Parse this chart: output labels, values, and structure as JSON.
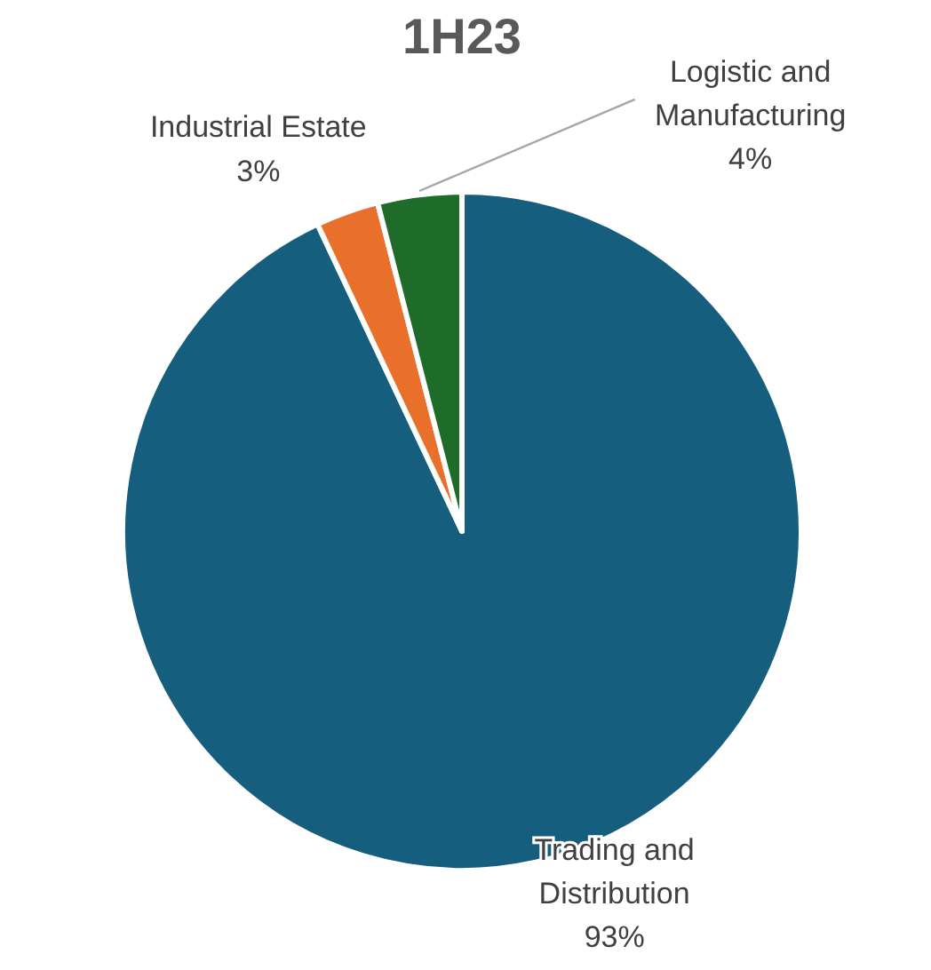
{
  "chart_data": {
    "type": "pie",
    "title": "1H23",
    "categories": [
      "Trading and Distribution",
      "Industrial Estate",
      "Logistic and Manufacturing"
    ],
    "values": [
      93,
      3,
      4
    ],
    "colors": [
      "#155e7d",
      "#e8702a",
      "#1e6b2a"
    ],
    "value_labels": [
      "93%",
      "3%",
      "4%"
    ]
  }
}
